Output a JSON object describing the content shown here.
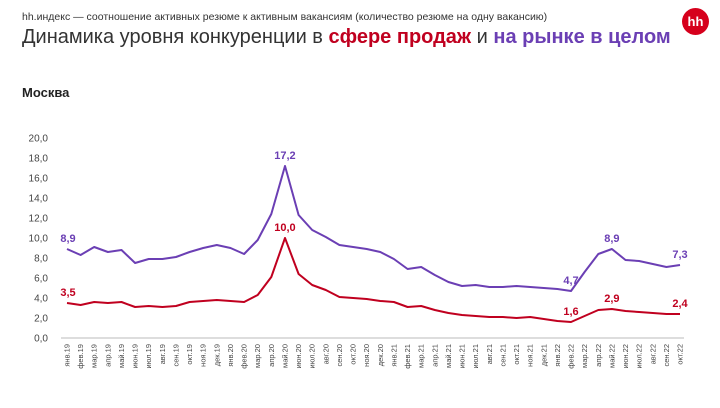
{
  "header": {
    "subtitle": "hh.индекс — соотношение активных резюме к активным вакансиям (количество резюме на одну вакансию)",
    "title_part1": "Динамика уровня конкуренции в ",
    "title_sales": "сфере продаж",
    "title_part2": " и ",
    "title_market": "на рынке в целом",
    "logo": "hh"
  },
  "region": "Москва",
  "colors": {
    "sales": "#c0001f",
    "market": "#6b3fb4",
    "text": "#333333",
    "logo": "#d6001c"
  },
  "chart_data": {
    "type": "line",
    "ylim": [
      0,
      20
    ],
    "yticks": [
      "0,0",
      "2,0",
      "4,0",
      "6,0",
      "8,0",
      "10,0",
      "12,0",
      "14,0",
      "16,0",
      "18,0",
      "20,0"
    ],
    "categories": [
      "янв.19",
      "фев.19",
      "мар.19",
      "апр.19",
      "май.19",
      "июн.19",
      "июл.19",
      "авг.19",
      "сен.19",
      "окт.19",
      "ноя.19",
      "дек.19",
      "янв.20",
      "фев.20",
      "мар.20",
      "апр.20",
      "май.20",
      "июн.20",
      "июл.20",
      "авг.20",
      "сен.20",
      "окт.20",
      "ноя.20",
      "дек.20",
      "янв.21",
      "фев.21",
      "мар.21",
      "апр.21",
      "май.21",
      "июн.21",
      "июл.21",
      "авг.21",
      "сен.21",
      "окт.21",
      "ноя.21",
      "дек.21",
      "янв.22",
      "фев.22",
      "мар.22",
      "апр.22",
      "май.22",
      "июн.22",
      "июл.22",
      "авг.22",
      "сен.22",
      "окт.22"
    ],
    "xtick_labels": [
      "янв.19",
      "мар.19",
      "май.19",
      "июл.19",
      "сен.19",
      "ноя.19",
      "янв.20",
      "мар.20",
      "май.20",
      "июл.20",
      "сен.20",
      "ноя.20",
      "янв.21",
      "мар.21",
      "май.21",
      "июл.21",
      "сен.21",
      "ноя.21",
      "янв.22",
      "мар.22",
      "май.22",
      "июл.22",
      "сен.22"
    ],
    "xtick_labels_b": [
      "фев.19",
      "апр.19",
      "июн.19",
      "авг.19",
      "окт.19",
      "дек.19",
      "фев.20",
      "апр.20",
      "июн.20",
      "авг.20",
      "окт.20",
      "дек.20",
      "фев.21",
      "апр.21",
      "июн.21",
      "авг.21",
      "окт.21",
      "дек.21",
      "фев.22",
      "апр.22",
      "июн.22",
      "авг.22",
      "окт.22"
    ],
    "series": [
      {
        "key": "market",
        "values": [
          8.9,
          8.3,
          9.1,
          8.6,
          8.8,
          7.5,
          7.9,
          7.9,
          8.1,
          8.6,
          9.0,
          9.3,
          9.0,
          8.4,
          9.8,
          12.4,
          17.2,
          12.3,
          10.8,
          10.1,
          9.3,
          9.1,
          8.9,
          8.6,
          7.9,
          6.9,
          7.1,
          6.3,
          5.6,
          5.2,
          5.3,
          5.1,
          5.1,
          5.2,
          5.1,
          5.0,
          4.9,
          4.7,
          6.6,
          8.4,
          8.9,
          7.8,
          7.7,
          7.4,
          7.1,
          7.3
        ],
        "labels": [
          {
            "i": 0,
            "text": "8,9"
          },
          {
            "i": 16,
            "text": "17,2"
          },
          {
            "i": 37,
            "text": "4,7"
          },
          {
            "i": 40,
            "text": "8,9"
          },
          {
            "i": 45,
            "text": "7,3"
          }
        ]
      },
      {
        "key": "sales",
        "values": [
          3.5,
          3.3,
          3.6,
          3.5,
          3.6,
          3.1,
          3.2,
          3.1,
          3.2,
          3.6,
          3.7,
          3.8,
          3.7,
          3.6,
          4.3,
          6.1,
          10.0,
          6.4,
          5.3,
          4.8,
          4.1,
          4.0,
          3.9,
          3.7,
          3.6,
          3.1,
          3.2,
          2.8,
          2.5,
          2.3,
          2.2,
          2.1,
          2.1,
          2.0,
          2.1,
          1.9,
          1.7,
          1.6,
          2.2,
          2.8,
          2.9,
          2.7,
          2.6,
          2.5,
          2.4,
          2.4
        ],
        "labels": [
          {
            "i": 0,
            "text": "3,5"
          },
          {
            "i": 16,
            "text": "10,0"
          },
          {
            "i": 37,
            "text": "1,6"
          },
          {
            "i": 40,
            "text": "2,9"
          },
          {
            "i": 45,
            "text": "2,4"
          }
        ]
      }
    ]
  }
}
